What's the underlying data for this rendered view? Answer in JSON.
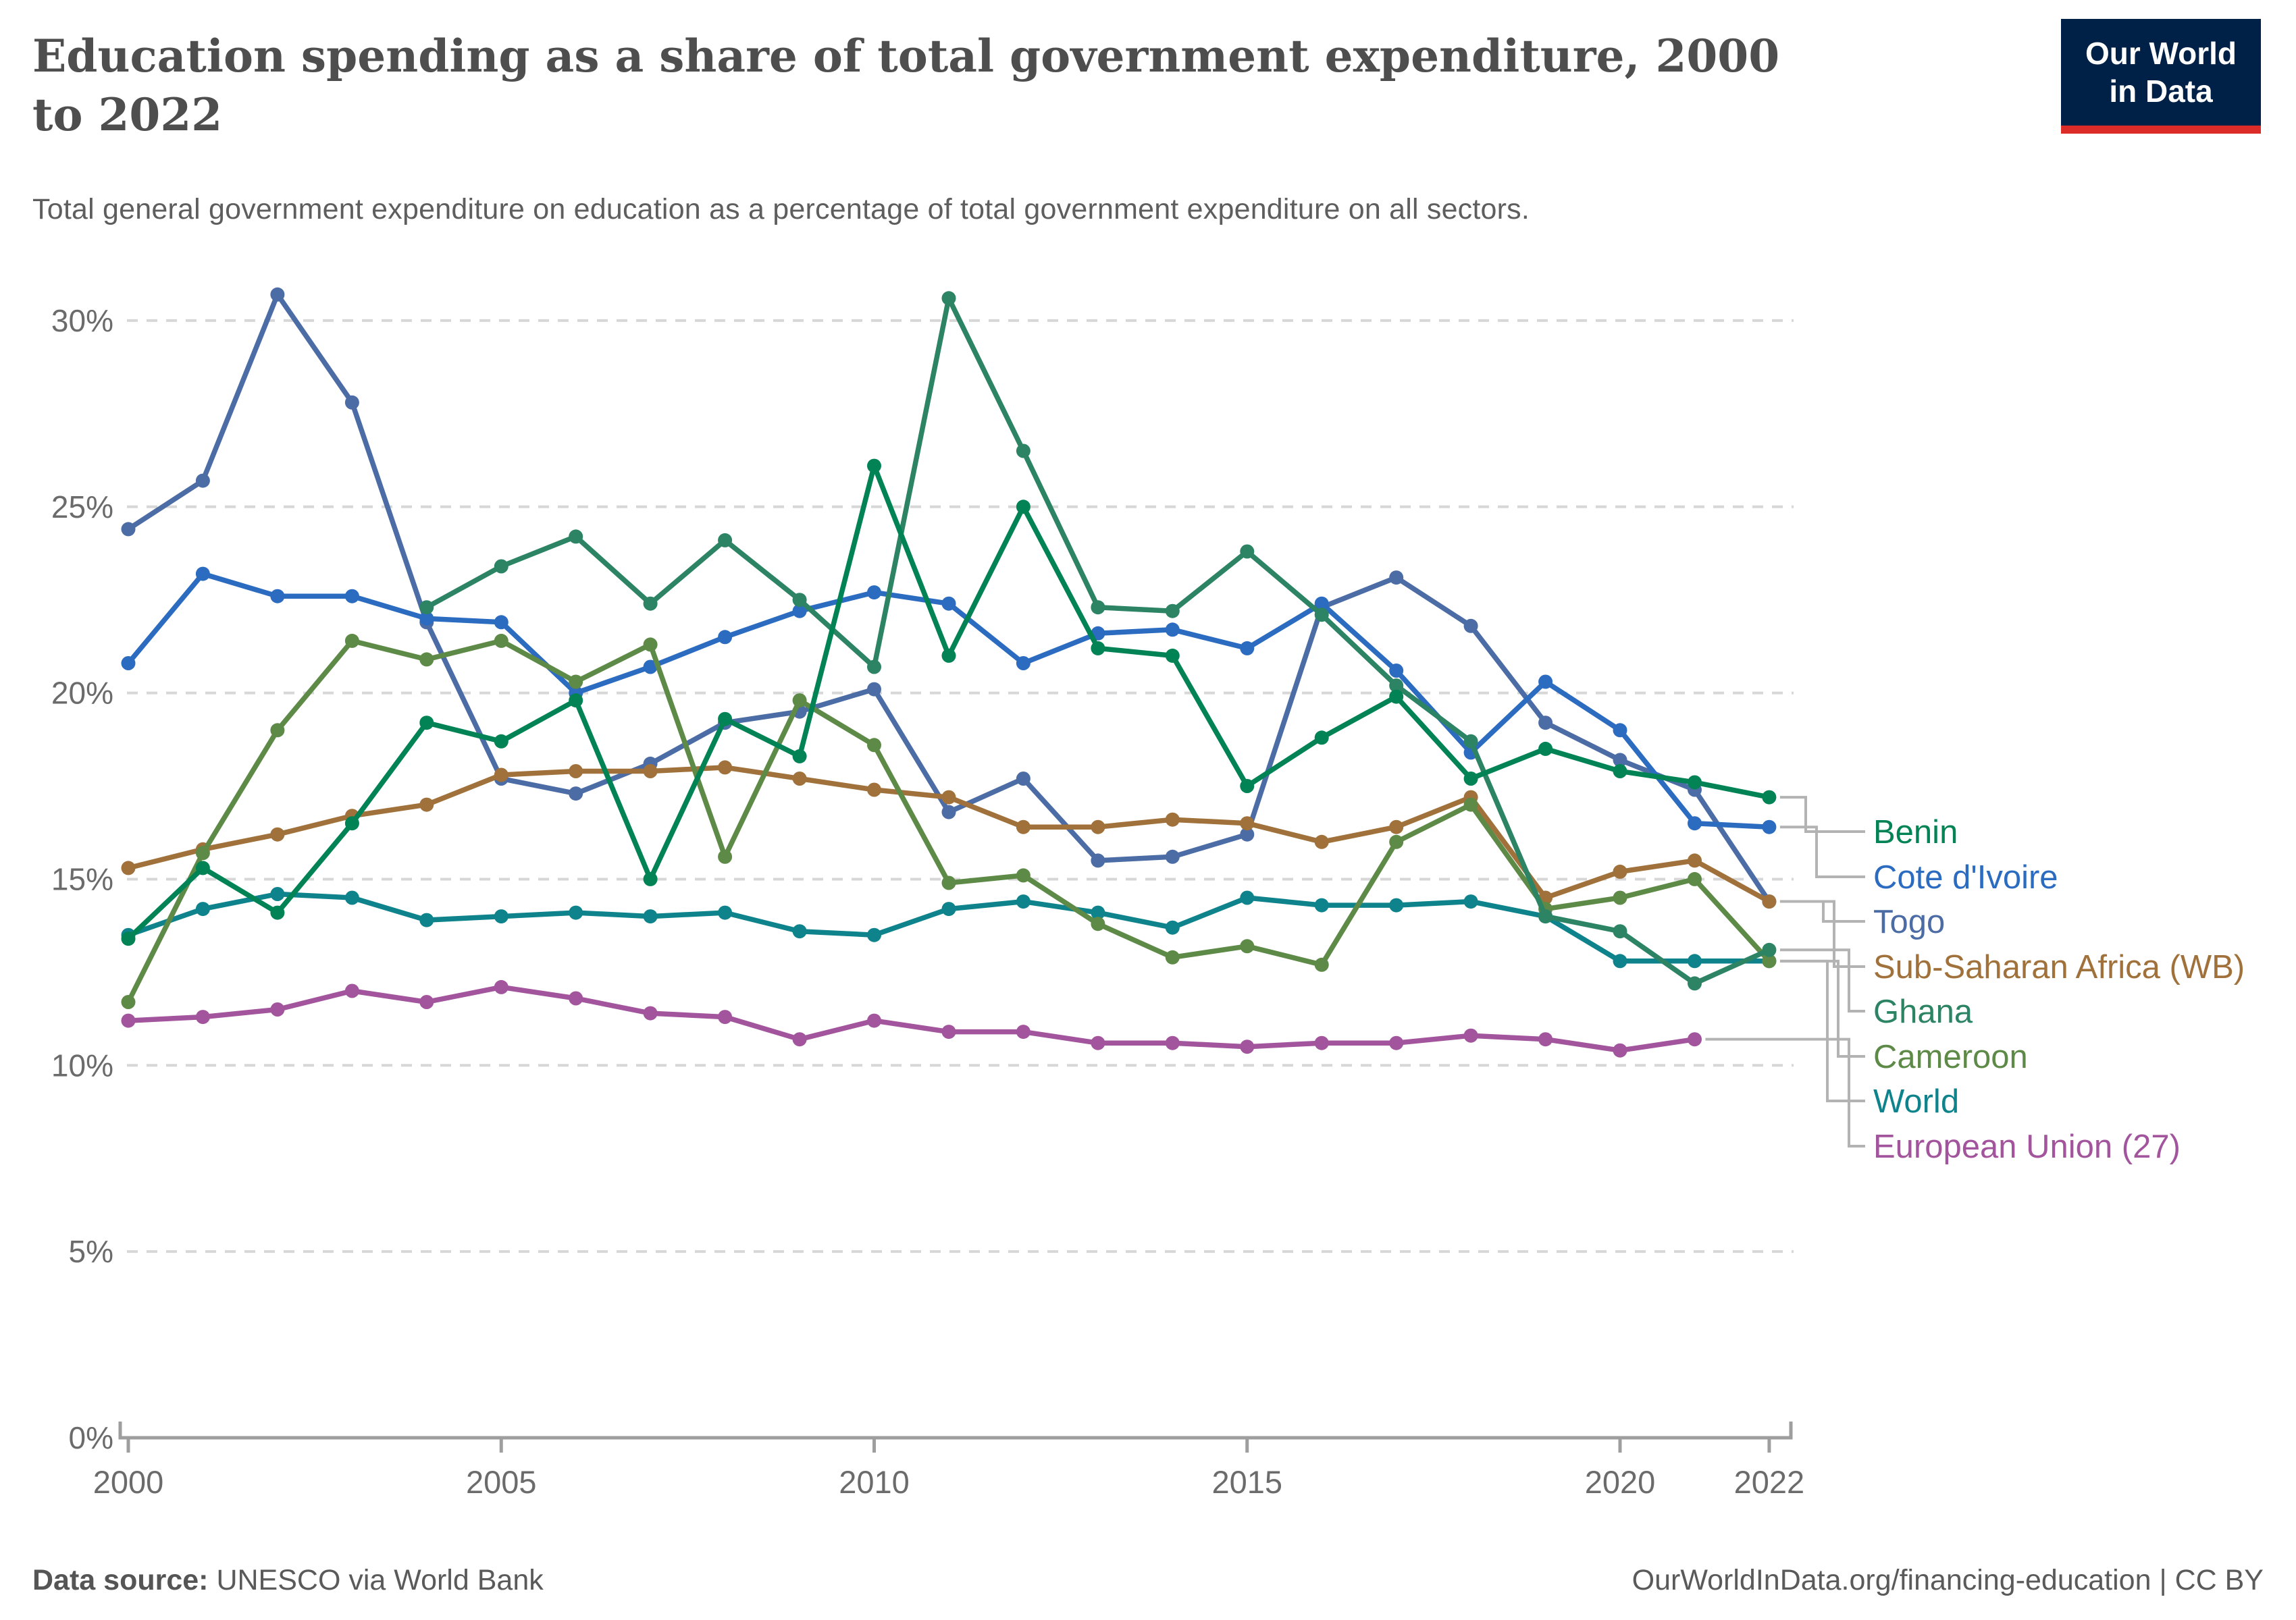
{
  "header": {
    "title_line1": "Education spending as a share of total government expenditure, 2000",
    "title_line2": "to 2022",
    "subtitle": "Total general government expenditure on education as a percentage of total government expenditure on all sectors.",
    "logo": {
      "line1": "Our World",
      "line2": "in Data"
    }
  },
  "footer": {
    "source_label": "Data source:",
    "source_value": "UNESCO via World Bank",
    "link_text": "OurWorldInData.org/financing-education",
    "separator": " | ",
    "license_text": "CC BY"
  },
  "axes": {
    "y_ticks": [
      {
        "value": 0,
        "label": "0%"
      },
      {
        "value": 5,
        "label": "5%"
      },
      {
        "value": 10,
        "label": "10%"
      },
      {
        "value": 15,
        "label": "15%"
      },
      {
        "value": 20,
        "label": "20%"
      },
      {
        "value": 25,
        "label": "25%"
      },
      {
        "value": 30,
        "label": "30%"
      }
    ],
    "x_ticks": [
      2000,
      2005,
      2010,
      2015,
      2020,
      2022
    ],
    "grid_color": "#d7d7d7",
    "axis_color": "#9e9e9e",
    "label_color": "#6b6b6b",
    "connector_color": "#b3b3b3"
  },
  "chart_data": {
    "type": "line",
    "title": "Education spending as a share of total government expenditure, 2000 to 2022",
    "xlabel": "",
    "ylabel": "",
    "xlim": [
      2000,
      2022
    ],
    "ylim": [
      0,
      31.5
    ],
    "grid": true,
    "legend_position": "right",
    "x": [
      2000,
      2001,
      2002,
      2003,
      2004,
      2005,
      2006,
      2007,
      2008,
      2009,
      2010,
      2011,
      2012,
      2013,
      2014,
      2015,
      2016,
      2017,
      2018,
      2019,
      2020,
      2021,
      2022
    ],
    "series": [
      {
        "id": "eu",
        "name": "European Union (27)",
        "color": "#A2559C",
        "legend_y": 1698,
        "elbow_x": 2738,
        "values": [
          11.2,
          11.3,
          11.5,
          12.0,
          11.7,
          12.1,
          11.8,
          11.4,
          11.3,
          10.7,
          11.2,
          10.9,
          10.9,
          10.6,
          10.6,
          10.5,
          10.6,
          10.6,
          10.8,
          10.7,
          10.4,
          10.7,
          null
        ]
      },
      {
        "id": "world",
        "name": "World",
        "color": "#0E838C",
        "legend_y": 1631,
        "elbow_x": 2706,
        "values": [
          13.5,
          14.2,
          14.6,
          14.5,
          13.9,
          14.0,
          14.1,
          14.0,
          14.1,
          13.6,
          13.5,
          14.2,
          14.4,
          14.1,
          13.7,
          14.5,
          14.3,
          14.3,
          14.4,
          14.0,
          12.8,
          12.8,
          12.8
        ]
      },
      {
        "id": "togo",
        "name": "Togo",
        "color": "#4C6CA5",
        "legend_y": 1365,
        "elbow_x": 2700,
        "values": [
          24.4,
          25.7,
          30.7,
          27.8,
          21.9,
          17.7,
          17.3,
          18.1,
          19.2,
          19.5,
          20.1,
          16.8,
          17.7,
          15.5,
          15.6,
          16.2,
          22.3,
          23.1,
          21.8,
          19.2,
          18.2,
          17.4,
          14.4
        ]
      },
      {
        "id": "civ",
        "name": "Cote d'Ivoire",
        "color": "#2B6BC0",
        "legend_y": 1299,
        "elbow_x": 2690,
        "values": [
          20.8,
          23.2,
          22.6,
          22.6,
          22.0,
          21.9,
          20.0,
          20.7,
          21.5,
          22.2,
          22.7,
          22.4,
          20.8,
          21.6,
          21.7,
          21.2,
          22.4,
          20.6,
          18.4,
          20.3,
          19.0,
          16.5,
          16.4
        ]
      },
      {
        "id": "ssa",
        "name": "Sub-Saharan Africa (WB)",
        "color": "#A0713A",
        "legend_y": 1432,
        "elbow_x": 2716,
        "values": [
          15.3,
          15.8,
          16.2,
          16.7,
          17.0,
          17.8,
          17.9,
          17.9,
          18.0,
          17.7,
          17.4,
          17.2,
          16.4,
          16.4,
          16.6,
          16.5,
          16.0,
          16.4,
          17.2,
          14.5,
          15.2,
          15.5,
          14.4
        ]
      },
      {
        "id": "cameroon",
        "name": "Cameroon",
        "color": "#5E8A47",
        "legend_y": 1565,
        "elbow_x": 2722,
        "values": [
          11.7,
          15.7,
          19.0,
          21.4,
          20.9,
          21.4,
          20.3,
          21.3,
          15.6,
          19.8,
          18.6,
          14.9,
          15.1,
          13.8,
          12.9,
          13.2,
          12.7,
          16.0,
          17.0,
          14.2,
          14.5,
          15.0,
          12.8
        ]
      },
      {
        "id": "ghana",
        "name": "Ghana",
        "color": "#2C8465",
        "legend_y": 1498,
        "elbow_x": 2738,
        "values": [
          null,
          null,
          null,
          null,
          22.3,
          23.4,
          24.2,
          22.4,
          24.1,
          22.5,
          20.7,
          30.6,
          26.5,
          22.3,
          22.2,
          23.8,
          22.1,
          20.2,
          18.7,
          14.0,
          13.6,
          12.2,
          13.1
        ]
      },
      {
        "id": "benin",
        "name": "Benin",
        "color": "#018355",
        "legend_y": 1232,
        "elbow_x": 2674,
        "values": [
          13.4,
          15.3,
          14.1,
          16.5,
          19.2,
          18.7,
          19.8,
          15.0,
          19.3,
          18.3,
          26.1,
          21.0,
          25.0,
          21.2,
          21.0,
          17.5,
          18.8,
          19.9,
          17.7,
          18.5,
          17.9,
          17.6,
          17.2
        ]
      }
    ],
    "legend_order": [
      "benin",
      "civ",
      "togo",
      "ssa",
      "ghana",
      "cameroon",
      "world",
      "eu"
    ]
  }
}
